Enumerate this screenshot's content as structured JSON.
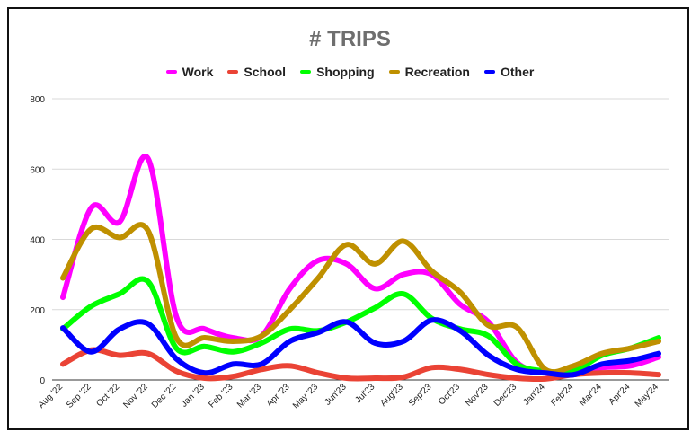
{
  "chart_data": {
    "type": "line",
    "title": "# TRIPS",
    "xlabel": "",
    "ylabel": "",
    "ylim": [
      0,
      800
    ],
    "yticks": [
      0,
      200,
      400,
      600,
      800
    ],
    "grid": true,
    "legend_position": "top",
    "categories": [
      "Aug '22",
      "Sep '22",
      "Oct '22",
      "Nov '22",
      "Dec '22",
      "Jan '23",
      "Feb '23",
      "Mar '23",
      "Apr '23",
      "May '23",
      "Jun'23",
      "Jul'23",
      "Aug'23",
      "Sep'23",
      "Oct'23",
      "Nov'23",
      "Dec'23",
      "Jan'24",
      "Feb'24",
      "Mar'24",
      "Apr'24",
      "May'24"
    ],
    "series": [
      {
        "name": "Work",
        "color": "#ff00ff",
        "values": [
          235,
          490,
          450,
          630,
          180,
          145,
          120,
          125,
          260,
          340,
          330,
          260,
          300,
          300,
          215,
          165,
          50,
          20,
          15,
          35,
          40,
          65
        ]
      },
      {
        "name": "School",
        "color": "#ea4335",
        "values": [
          45,
          85,
          70,
          75,
          25,
          5,
          10,
          30,
          40,
          20,
          5,
          5,
          8,
          35,
          30,
          15,
          5,
          3,
          15,
          20,
          20,
          15
        ]
      },
      {
        "name": "Shopping",
        "color": "#00ff00",
        "values": [
          145,
          210,
          245,
          280,
          90,
          95,
          80,
          105,
          145,
          140,
          165,
          205,
          245,
          175,
          145,
          125,
          45,
          25,
          25,
          70,
          90,
          120
        ]
      },
      {
        "name": "Recreation",
        "color": "#bf9000",
        "values": [
          290,
          430,
          405,
          425,
          120,
          120,
          110,
          125,
          200,
          290,
          385,
          330,
          395,
          310,
          250,
          155,
          150,
          30,
          40,
          75,
          90,
          110
        ]
      },
      {
        "name": "Other",
        "color": "#0000ff",
        "values": [
          148,
          80,
          145,
          160,
          60,
          20,
          45,
          45,
          110,
          135,
          165,
          105,
          110,
          170,
          140,
          70,
          30,
          20,
          15,
          45,
          55,
          75
        ]
      }
    ]
  }
}
